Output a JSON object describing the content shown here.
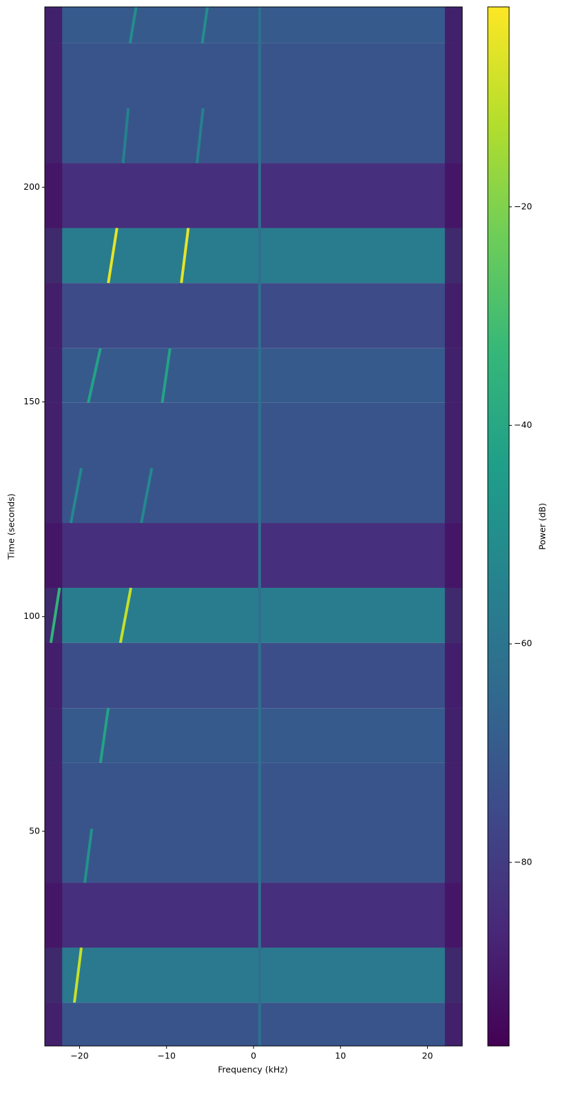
{
  "chart_data": {
    "type": "spectrogram",
    "xlabel": "Frequency (kHz)",
    "ylabel": "Time (seconds)",
    "colorbar_label": "Power (dB)",
    "xlim": [
      -24,
      24
    ],
    "xticks": [
      {
        "value": -20,
        "label": "−20"
      },
      {
        "value": -10,
        "label": "−10"
      },
      0,
      10,
      20
    ],
    "ylim": [
      0,
      242
    ],
    "yticks": [
      50,
      100,
      150,
      200
    ],
    "clim": [
      -96.8,
      -1.7
    ],
    "cticks": [
      {
        "value": -80,
        "label": "−80"
      },
      {
        "value": -60,
        "label": "−60"
      },
      {
        "value": -40,
        "label": "−40"
      },
      {
        "value": -20,
        "label": "−20"
      }
    ],
    "colormap": "viridis",
    "bands": [
      {
        "t0": 0,
        "t1": 10.1,
        "power": -72
      },
      {
        "t0": 10.1,
        "t1": 22.9,
        "power": -58
      },
      {
        "t0": 22.9,
        "t1": 38,
        "power": -84
      },
      {
        "t0": 38,
        "t1": 65.9,
        "power": -72
      },
      {
        "t0": 65.9,
        "t1": 78.7,
        "power": -70
      },
      {
        "t0": 78.7,
        "t1": 93.9,
        "power": -74
      },
      {
        "t0": 93.9,
        "t1": 106.7,
        "power": -57
      },
      {
        "t0": 106.7,
        "t1": 121.8,
        "power": -84
      },
      {
        "t0": 121.8,
        "t1": 149.8,
        "power": -72
      },
      {
        "t0": 149.8,
        "t1": 162.5,
        "power": -70
      },
      {
        "t0": 162.5,
        "t1": 177.7,
        "power": -75
      },
      {
        "t0": 177.7,
        "t1": 190.5,
        "power": -57
      },
      {
        "t0": 190.5,
        "t1": 205.6,
        "power": -84
      },
      {
        "t0": 205.6,
        "t1": 233.5,
        "power": -72
      },
      {
        "t0": 233.5,
        "t1": 242,
        "power": -70
      }
    ],
    "edges": [
      {
        "f0": -24,
        "f1": -22,
        "power": -93
      },
      {
        "f0": 22,
        "f1": 24,
        "power": -93
      }
    ],
    "tones": [
      {
        "f0": 0.7,
        "f1": 0.7,
        "t0": 0,
        "t1": 242,
        "power": -62
      },
      {
        "f0": -20.6,
        "f1": -19.8,
        "t0": 10.1,
        "t1": 22.9,
        "power": -10
      },
      {
        "f0": -19.4,
        "f1": -18.6,
        "t0": 38,
        "t1": 50.6,
        "power": -48
      },
      {
        "f0": -17.6,
        "f1": -16.7,
        "t0": 65.9,
        "t1": 78.7,
        "power": -42
      },
      {
        "f0": -23.3,
        "f1": -22.3,
        "t0": 93.9,
        "t1": 106.7,
        "power": -35
      },
      {
        "f0": -15.3,
        "f1": -14.1,
        "t0": 93.9,
        "t1": 106.7,
        "power": -10
      },
      {
        "f0": -21,
        "f1": -19.8,
        "t0": 121.8,
        "t1": 134.6,
        "power": -52
      },
      {
        "f0": -12.9,
        "f1": -11.7,
        "t0": 121.8,
        "t1": 134.6,
        "power": -52
      },
      {
        "f0": -19,
        "f1": -17.6,
        "t0": 149.8,
        "t1": 162.5,
        "power": -42
      },
      {
        "f0": -10.5,
        "f1": -9.6,
        "t0": 149.8,
        "t1": 162.5,
        "power": -42
      },
      {
        "f0": -16.7,
        "f1": -15.7,
        "t0": 177.7,
        "t1": 190.5,
        "power": -5
      },
      {
        "f0": -8.3,
        "f1": -7.5,
        "t0": 177.7,
        "t1": 190.5,
        "power": -5
      },
      {
        "f0": -15,
        "f1": -14.4,
        "t0": 205.6,
        "t1": 218.4,
        "power": -55
      },
      {
        "f0": -6.5,
        "f1": -5.8,
        "t0": 205.6,
        "t1": 218.4,
        "power": -55
      },
      {
        "f0": -14.2,
        "f1": -13.5,
        "t0": 233.5,
        "t1": 242,
        "power": -50
      },
      {
        "f0": -5.9,
        "f1": -5.3,
        "t0": 233.5,
        "t1": 242,
        "power": -50
      }
    ]
  }
}
